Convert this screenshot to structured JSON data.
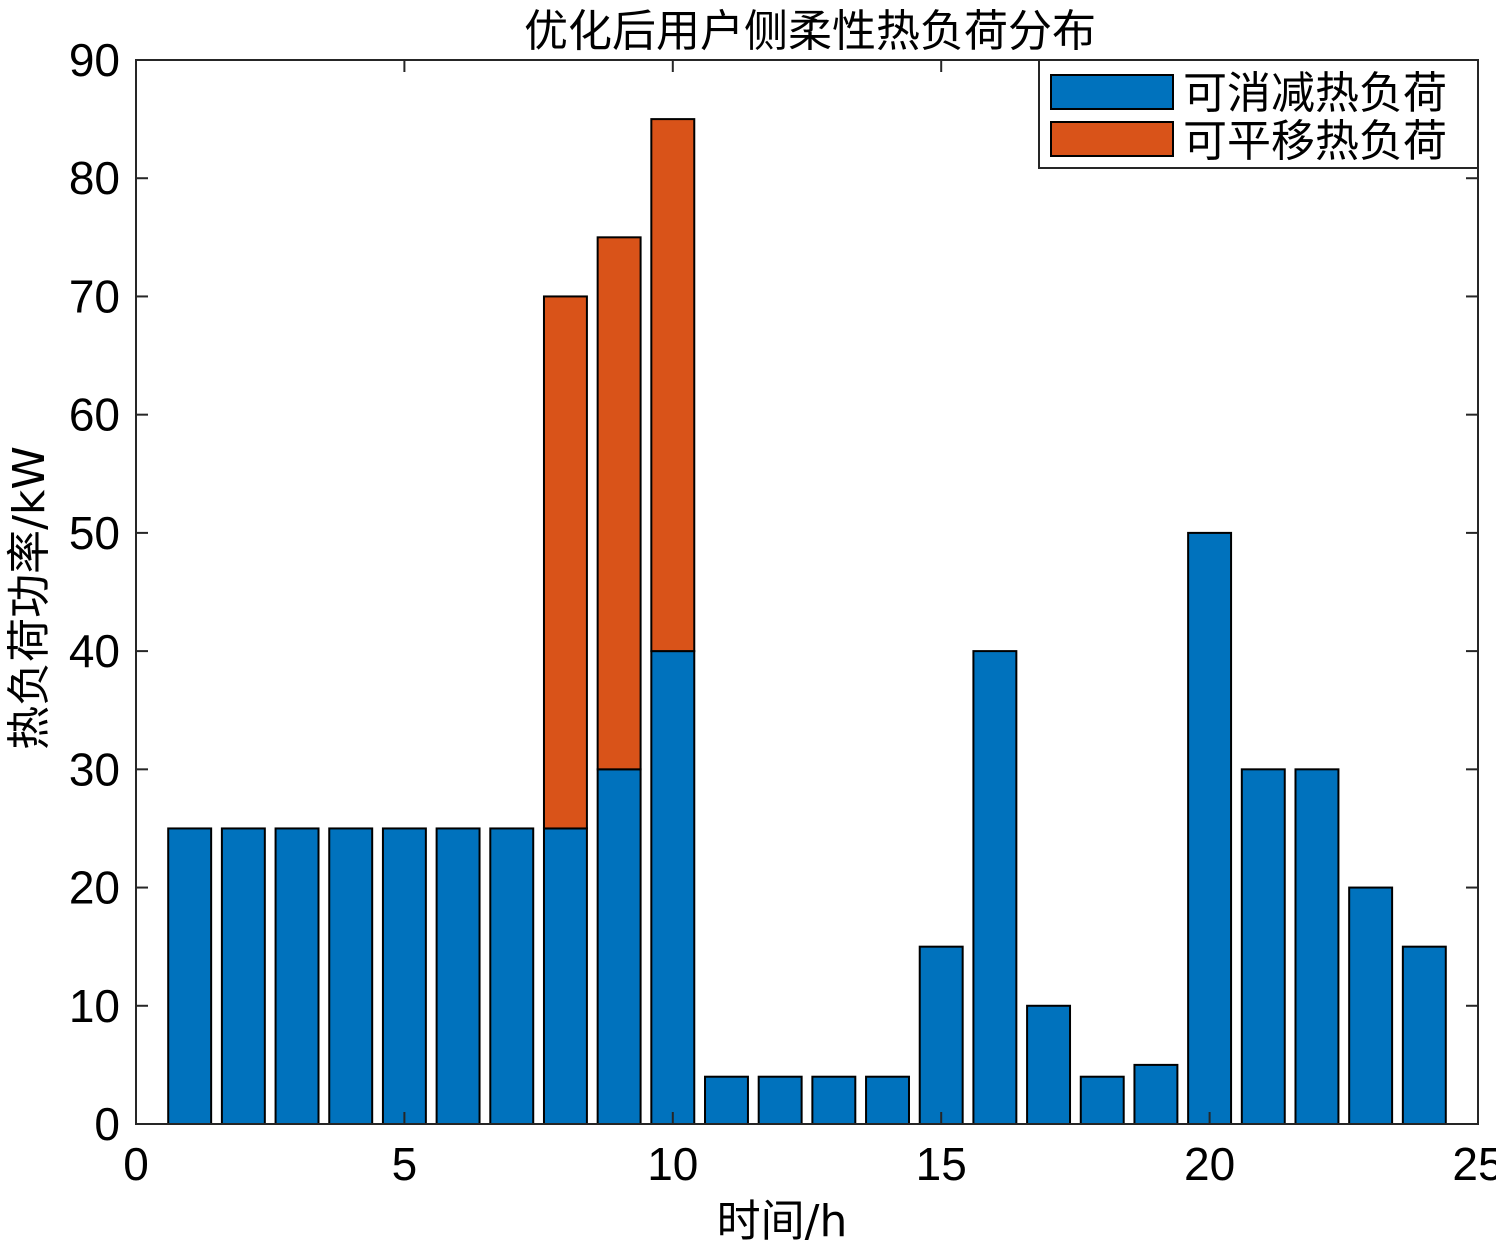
{
  "chart_data": {
    "type": "bar",
    "stacked": true,
    "title": "优化后用户侧柔性热负荷分布",
    "xlabel": "时间/h",
    "ylabel": "热负荷功率/kW",
    "xlim": [
      0,
      25
    ],
    "ylim": [
      0,
      90
    ],
    "xticks": [
      0,
      5,
      10,
      15,
      20,
      25
    ],
    "yticks": [
      0,
      10,
      20,
      30,
      40,
      50,
      60,
      70,
      80,
      90
    ],
    "grid": false,
    "legend_position": "top-right",
    "categories": [
      1,
      2,
      3,
      4,
      5,
      6,
      7,
      8,
      9,
      10,
      11,
      12,
      13,
      14,
      15,
      16,
      17,
      18,
      19,
      20,
      21,
      22,
      23,
      24
    ],
    "series": [
      {
        "name": "可消减热负荷",
        "color": "#0072BD",
        "values": [
          25,
          25,
          25,
          25,
          25,
          25,
          25,
          25,
          30,
          40,
          4,
          4,
          4,
          4,
          15,
          40,
          10,
          4,
          5,
          50,
          30,
          30,
          20,
          15
        ]
      },
      {
        "name": "可平移热负荷",
        "color": "#D95319",
        "values": [
          0,
          0,
          0,
          0,
          0,
          0,
          0,
          45,
          45,
          45,
          0,
          0,
          0,
          0,
          0,
          0,
          0,
          0,
          0,
          0,
          0,
          0,
          0,
          0
        ]
      }
    ]
  }
}
